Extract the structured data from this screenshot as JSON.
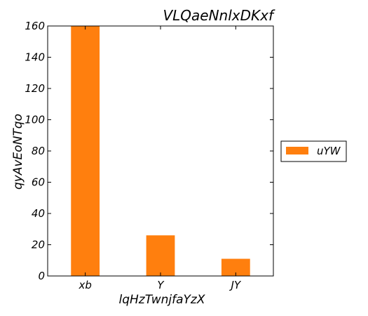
{
  "chart_data": {
    "type": "bar",
    "title": "VLQaeNnlxDKxf",
    "xlabel": "lqHzTwnjfaYzX",
    "ylabel": "qyAvEoNTqo",
    "categories": [
      "xb",
      "Y",
      "JY"
    ],
    "series": [
      {
        "name": "uYW",
        "values": [
          160,
          26,
          11
        ],
        "color": "#ff7f0e"
      }
    ],
    "ylim": [
      0,
      160
    ],
    "yticks": [
      0,
      20,
      40,
      60,
      80,
      100,
      120,
      140,
      160
    ],
    "grid": false,
    "legend_position": "right"
  }
}
